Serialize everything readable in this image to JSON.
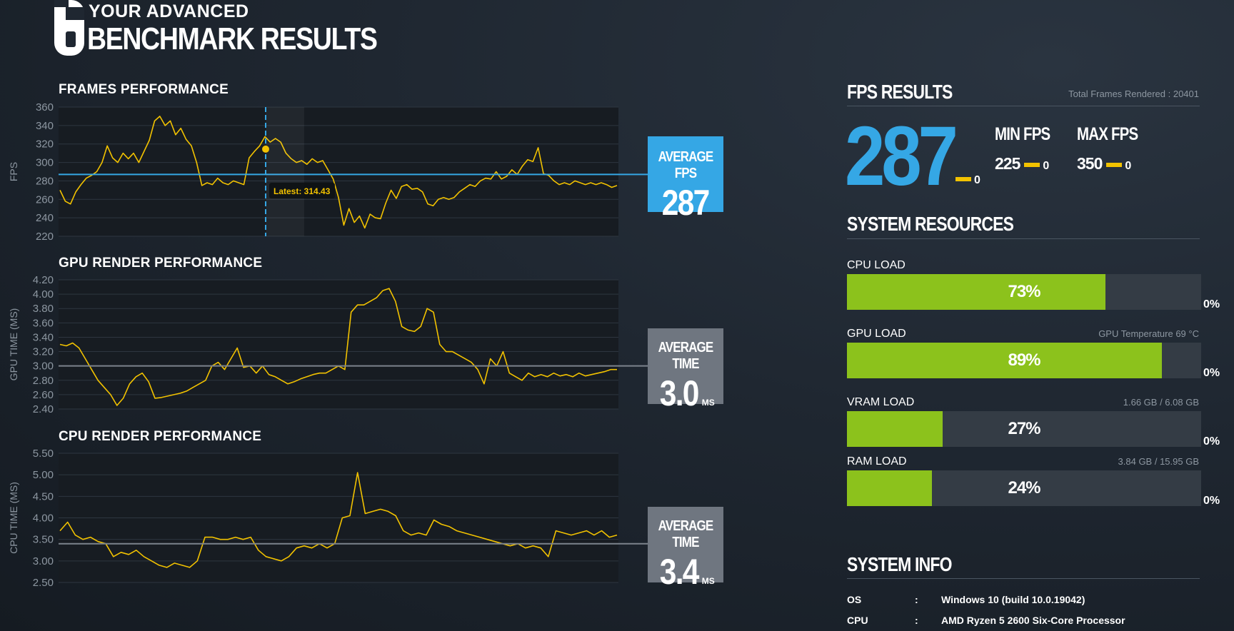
{
  "header": {
    "logo": "6",
    "line1": "YOUR ADVANCED",
    "line2": "BENCHMARK RESULTS"
  },
  "frames": {
    "title": "FRAMES PERFORMANCE",
    "ylabel": "FPS",
    "ticks": [
      "360",
      "340",
      "320",
      "300",
      "280",
      "260",
      "240",
      "220"
    ],
    "tooltip": "Latest: 314.43",
    "avg_label": "AVERAGE FPS",
    "avg_value": "287"
  },
  "gpu": {
    "title": "GPU RENDER PERFORMANCE",
    "ylabel": "GPU TIME (MS)",
    "ticks": [
      "4.20",
      "4.00",
      "3.80",
      "3.60",
      "3.40",
      "3.20",
      "3.00",
      "2.80",
      "2.60",
      "2.40"
    ],
    "avg_label": "AVERAGE TIME",
    "avg_value": "3.0",
    "avg_unit": "MS"
  },
  "cpu": {
    "title": "CPU RENDER PERFORMANCE",
    "ylabel": "CPU TIME (MS)",
    "ticks": [
      "5.50",
      "5.00",
      "4.50",
      "4.00",
      "3.50",
      "3.00",
      "2.50"
    ],
    "avg_label": "AVERAGE TIME",
    "avg_value": "3.4",
    "avg_unit": "MS"
  },
  "fps_results": {
    "title": "FPS RESULTS",
    "total_frames": "Total Frames Rendered : 20401",
    "avg": "287",
    "avg_zero": "0",
    "min_label": "MIN FPS",
    "min_value": "225",
    "min_zero": "0",
    "max_label": "MAX FPS",
    "max_value": "350",
    "max_zero": "0"
  },
  "system_resources": {
    "title": "SYSTEM RESOURCES",
    "bars": [
      {
        "label": "CPU LOAD",
        "value": "73%",
        "fraction": 0.73,
        "note": "",
        "zero": "0%"
      },
      {
        "label": "GPU LOAD",
        "value": "89%",
        "fraction": 0.89,
        "note": "GPU Temperature 69 °C",
        "zero": "0%"
      },
      {
        "label": "VRAM LOAD",
        "value": "27%",
        "fraction": 0.27,
        "note": "1.66 GB / 6.08 GB",
        "zero": "0%"
      },
      {
        "label": "RAM LOAD",
        "value": "24%",
        "fraction": 0.24,
        "note": "3.84 GB / 15.95 GB",
        "zero": "0%"
      }
    ]
  },
  "system_info": {
    "title": "SYSTEM INFO",
    "rows": [
      {
        "key": "OS",
        "sep": ":",
        "value": "Windows 10 (build 10.0.19042)"
      },
      {
        "key": "CPU",
        "sep": ":",
        "value": "AMD Ryzen 5 2600 Six-Core Processor"
      }
    ]
  },
  "colors": {
    "accent_blue": "#35a7e5",
    "line_yellow": "#f2c200",
    "bar_green": "#8cc21c",
    "avg_grey": "#6f7680"
  },
  "chart_data": [
    {
      "type": "line",
      "title": "FRAMES PERFORMANCE",
      "ylabel": "FPS",
      "ylim": [
        220,
        360
      ],
      "average": 287,
      "cursor_value": 314.43,
      "series": [
        {
          "values": [
            270,
            258,
            255,
            268,
            276,
            283,
            286,
            290,
            300,
            318,
            305,
            300,
            310,
            304,
            310,
            300,
            312,
            324,
            345,
            350,
            340,
            345,
            330,
            337,
            325,
            318,
            300,
            275,
            278,
            276,
            283,
            278,
            276,
            280,
            278,
            276,
            305,
            312,
            318,
            328,
            322,
            326,
            322,
            310,
            304,
            300,
            302,
            298,
            304,
            300,
            302,
            292,
            282,
            262,
            232,
            250,
            235,
            242,
            229,
            244,
            240,
            239,
            256,
            270,
            261,
            274,
            276,
            271,
            272,
            268,
            255,
            253,
            260,
            262,
            260,
            262,
            268,
            272,
            276,
            274,
            280,
            283,
            282,
            290,
            282,
            285,
            292,
            287,
            296,
            303,
            301,
            316,
            288,
            286,
            280,
            276,
            278,
            276,
            280,
            278,
            276,
            278,
            276,
            278,
            276,
            273,
            275
          ]
        }
      ]
    },
    {
      "type": "line",
      "title": "GPU RENDER PERFORMANCE",
      "ylabel": "GPU TIME (MS)",
      "ylim": [
        2.4,
        4.2
      ],
      "average": 3.0,
      "series": [
        {
          "values": [
            3.3,
            3.28,
            3.32,
            3.25,
            3.1,
            2.95,
            2.8,
            2.7,
            2.6,
            2.45,
            2.55,
            2.75,
            2.85,
            2.9,
            2.78,
            2.55,
            2.56,
            2.58,
            2.6,
            2.62,
            2.65,
            2.7,
            2.75,
            2.8,
            3.0,
            3.05,
            2.95,
            3.1,
            3.25,
            2.98,
            3.0,
            2.9,
            3.0,
            2.88,
            2.85,
            2.8,
            2.75,
            2.78,
            2.82,
            2.85,
            2.88,
            2.9,
            2.9,
            2.95,
            3.0,
            2.95,
            3.75,
            3.85,
            3.85,
            3.9,
            3.95,
            4.05,
            4.08,
            3.9,
            3.55,
            3.5,
            3.48,
            3.55,
            3.8,
            3.75,
            3.3,
            3.2,
            3.2,
            3.15,
            3.1,
            3.05,
            2.95,
            2.75,
            3.1,
            3.0,
            3.2,
            2.9,
            2.85,
            2.8,
            2.9,
            2.85,
            2.88,
            2.85,
            2.9,
            2.86,
            2.88,
            2.85,
            2.9,
            2.86,
            2.88,
            2.9,
            2.92,
            2.95,
            2.95
          ]
        }
      ]
    },
    {
      "type": "line",
      "title": "CPU RENDER PERFORMANCE",
      "ylabel": "CPU TIME (MS)",
      "ylim": [
        2.5,
        5.5
      ],
      "average": 3.4,
      "series": [
        {
          "values": [
            3.7,
            3.9,
            3.6,
            3.5,
            3.55,
            3.45,
            3.4,
            3.1,
            3.2,
            3.15,
            3.25,
            3.1,
            3.0,
            2.9,
            2.85,
            2.95,
            2.9,
            2.85,
            3.0,
            3.55,
            3.55,
            3.5,
            3.5,
            3.55,
            3.5,
            3.55,
            3.25,
            3.1,
            3.05,
            3.0,
            3.1,
            3.3,
            3.35,
            3.3,
            3.4,
            3.3,
            3.4,
            4.0,
            4.05,
            5.05,
            4.1,
            4.15,
            4.2,
            4.15,
            4.05,
            3.7,
            3.6,
            3.65,
            3.6,
            3.95,
            3.85,
            3.8,
            3.7,
            3.65,
            3.6,
            3.55,
            3.5,
            3.45,
            3.4,
            3.35,
            3.4,
            3.3,
            3.35,
            3.3,
            3.1,
            3.7,
            3.65,
            3.6,
            3.65,
            3.7,
            3.6,
            3.7,
            3.55,
            3.6
          ]
        }
      ]
    }
  ]
}
